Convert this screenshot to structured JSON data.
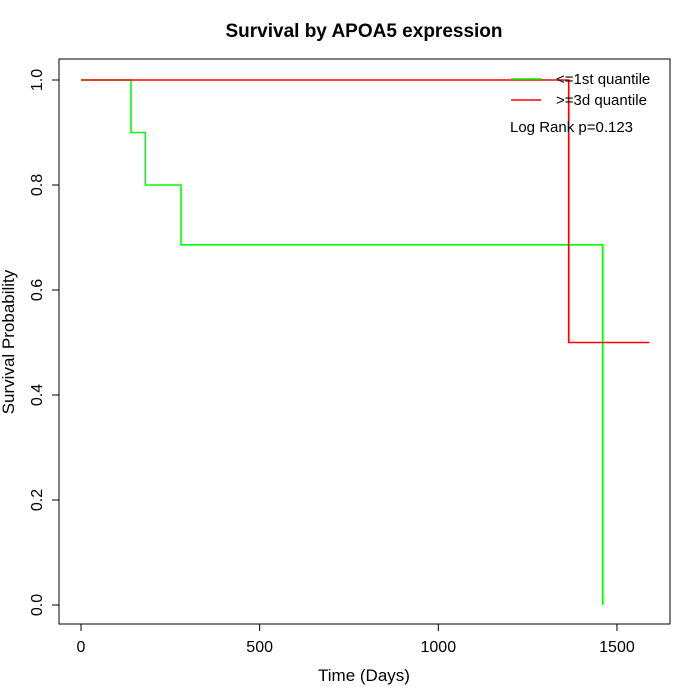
{
  "chart_data": {
    "type": "line",
    "title": "Survival by APOA5 expression",
    "xlabel": "Time (Days)",
    "ylabel": "Survival Probability",
    "xlim": [
      0,
      1650
    ],
    "ylim": [
      0,
      1.0
    ],
    "xticks": [
      0,
      500,
      1000,
      1500
    ],
    "yticks": [
      0.0,
      0.2,
      0.4,
      0.6,
      0.8,
      1.0
    ],
    "xtick_labels": [
      "0",
      "500",
      "1000",
      "1500"
    ],
    "ytick_labels": [
      "0.0",
      "0.2",
      "0.4",
      "0.6",
      "0.8",
      "1.0"
    ],
    "grid": false,
    "legend_position": "top-right",
    "annotation": "Log Rank p=0.123",
    "series": [
      {
        "name": "<=1st quantile",
        "color": "#00ff00",
        "step_points": [
          [
            0,
            1.0
          ],
          [
            140,
            1.0
          ],
          [
            140,
            0.9
          ],
          [
            180,
            0.9
          ],
          [
            180,
            0.8
          ],
          [
            280,
            0.8
          ],
          [
            280,
            0.686
          ],
          [
            1460,
            0.686
          ],
          [
            1460,
            0.0
          ]
        ]
      },
      {
        "name": ">=3d quantile",
        "color": "#ff0000",
        "step_points": [
          [
            0,
            1.0
          ],
          [
            1365,
            1.0
          ],
          [
            1365,
            0.5
          ],
          [
            1590,
            0.5
          ]
        ]
      }
    ]
  }
}
